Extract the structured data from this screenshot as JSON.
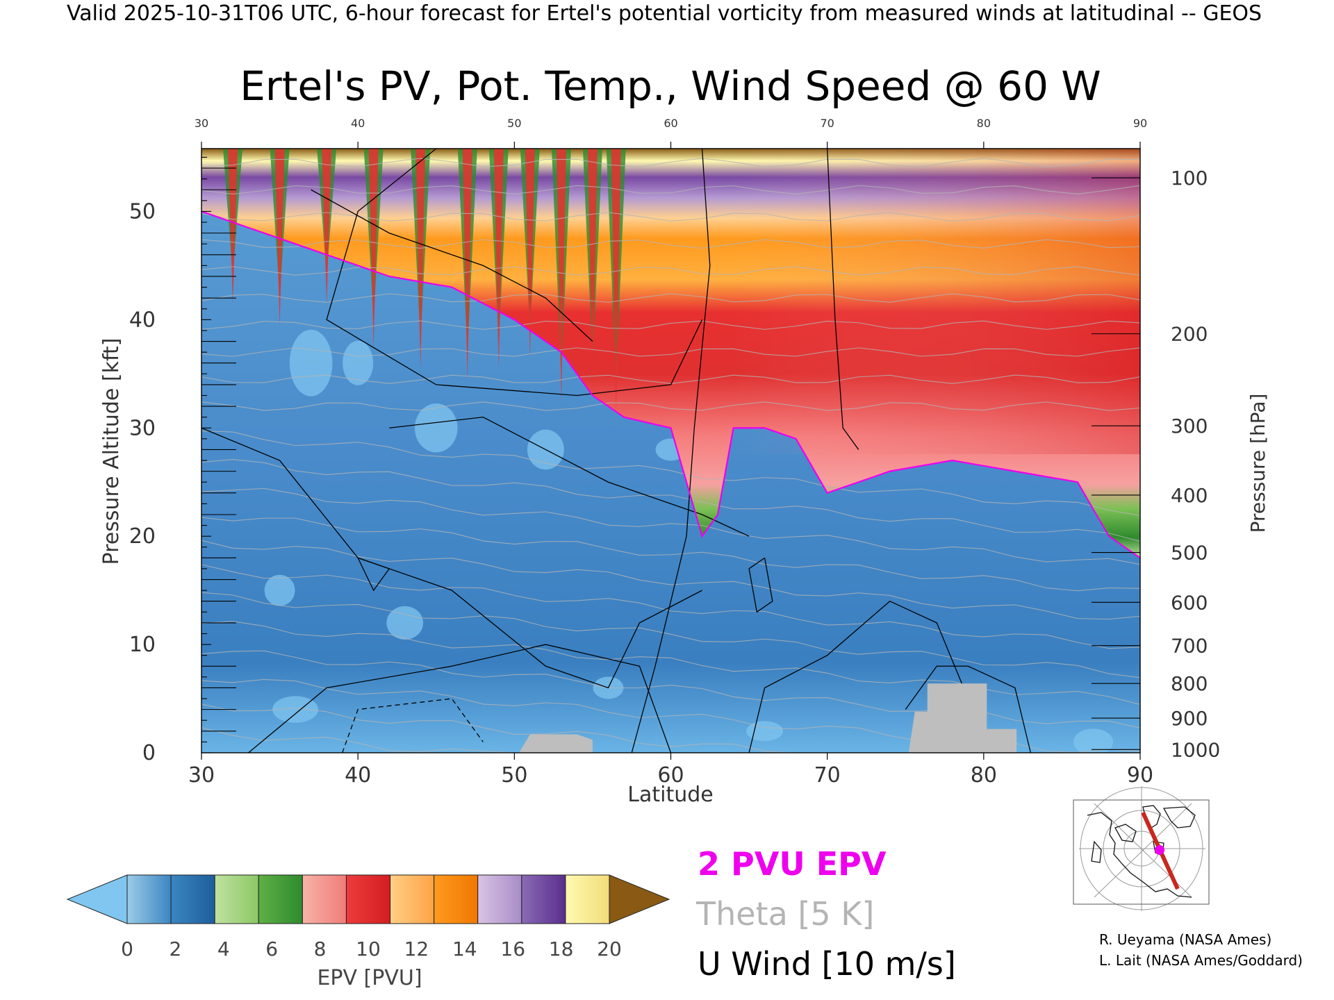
{
  "header": {
    "valid_line": "Valid 2025-10-31T06 UTC, 6-hour forecast for Ertel's potential vorticity from measured winds at latitudinal -- GEOS"
  },
  "chart_data": {
    "type": "heatmap",
    "title": "Ertel's PV, Pot. Temp., Wind Speed @ 60 W",
    "xlabel": "Latitude",
    "ylabel_left": "Pressure Altitude [kft]",
    "ylabel_right": "Pressure [hPa]",
    "xlim": [
      30,
      90
    ],
    "ylim": [
      0,
      55.8
    ],
    "x_ticks": [
      "30",
      "40",
      "50",
      "60",
      "70",
      "80",
      "90"
    ],
    "y_ticks_left": [
      {
        "label": "0",
        "kft": 0
      },
      {
        "label": "10",
        "kft": 10
      },
      {
        "label": "20",
        "kft": 20
      },
      {
        "label": "30",
        "kft": 30
      },
      {
        "label": "40",
        "kft": 40
      },
      {
        "label": "50",
        "kft": 50
      }
    ],
    "y_ticks_right": [
      {
        "label": "100",
        "kft": 53.1
      },
      {
        "label": "200",
        "kft": 38.7
      },
      {
        "label": "300",
        "kft": 30.2
      },
      {
        "label": "400",
        "kft": 23.8
      },
      {
        "label": "500",
        "kft": 18.5
      },
      {
        "label": "600",
        "kft": 13.9
      },
      {
        "label": "700",
        "kft": 9.9
      },
      {
        "label": "800",
        "kft": 6.4
      },
      {
        "label": "900",
        "kft": 3.2
      },
      {
        "label": "1000",
        "kft": 0.3
      }
    ],
    "colorbar": {
      "label": "EPV [PVU]",
      "ticks": [
        "0",
        "2",
        "4",
        "6",
        "8",
        "10",
        "12",
        "14",
        "16",
        "18",
        "20"
      ],
      "colors": [
        [
          "#9ccbe8",
          "#3b86c2"
        ],
        [
          "#3b86c2",
          "#1d5e9c"
        ],
        [
          "#c0e2a0",
          "#8cc865"
        ],
        [
          "#5fb044",
          "#2e8b2e"
        ],
        [
          "#f7b3a8",
          "#f07c78"
        ],
        [
          "#ee3b3b",
          "#d21e22"
        ],
        [
          "#ffcf86",
          "#ffa346"
        ],
        [
          "#ff9a1e",
          "#f07800"
        ],
        [
          "#d9c4e4",
          "#a88cc8"
        ],
        [
          "#8a6ab4",
          "#5a2e8e"
        ],
        [
          "#fffab0",
          "#f2dc7a"
        ]
      ],
      "under_color": "#80c6f0",
      "over_color": "#8a5a14"
    },
    "tropopause_2pvu": {
      "name": "2 PVU EPV",
      "color": "#ee00ee",
      "lat": [
        30,
        34,
        38,
        42,
        46,
        50,
        53,
        55,
        57,
        60,
        62,
        63,
        64,
        66,
        68,
        70,
        74,
        78,
        82,
        86,
        88,
        90
      ],
      "kft": [
        50,
        48,
        46,
        44,
        43,
        40,
        37,
        33,
        31,
        30,
        20,
        22,
        30,
        30,
        29,
        24,
        26,
        27,
        26,
        25,
        20,
        18
      ]
    },
    "wind_contours": {
      "name": "U Wind [10 m/s]",
      "levels_ms": [
        0,
        10,
        30,
        50
      ]
    },
    "theta": {
      "name": "Theta [5 K]",
      "color": "#b4b4b4"
    },
    "terrain": {
      "color": "#bebebe",
      "segments": [
        {
          "lat": [
            50.3,
            51,
            54,
            55,
            55,
            57.5
          ],
          "kft": [
            0,
            1.7,
            1.7,
            1.2,
            0,
            0
          ]
        },
        {
          "lat": [
            75.2,
            75.6,
            76.4,
            76.4,
            80.2,
            80.2,
            82.1,
            82.1
          ],
          "kft": [
            0,
            3.8,
            3.8,
            6.4,
            6.4,
            2.2,
            2.2,
            0
          ]
        }
      ]
    },
    "grid": false
  },
  "legend": {
    "pv_label": "2 PVU EPV",
    "pv_color": "#ee00ee",
    "theta_label": "Theta [5 K]",
    "theta_color": "#b4b4b4",
    "wind_label": "U Wind [10 m/s]",
    "wind_color": "#000000"
  },
  "credits": {
    "line1": "R. Ueyama (NASA Ames)",
    "line2": "L. Lait (NASA Ames/Goddard)"
  }
}
